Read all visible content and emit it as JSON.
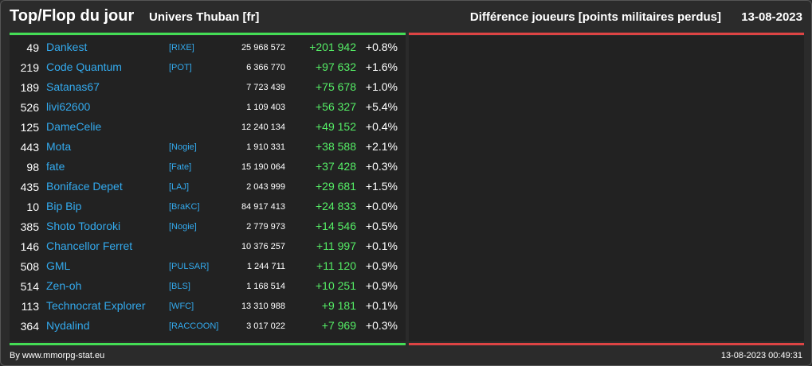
{
  "header": {
    "title": "Top/Flop du jour",
    "subtitle": "Univers Thuban [fr]",
    "metric": "Différence joueurs [points militaires perdus]",
    "date": "13-08-2023"
  },
  "colors": {
    "background": "#2b2b2b",
    "panel": "#222222",
    "top_line": "#44dd55",
    "flop_line": "#dd4444",
    "link": "#33aaee",
    "gain": "#55ee66"
  },
  "top": [
    {
      "rank": "49",
      "name": "Dankest",
      "alliance": "[RIXE]",
      "points": "25 968 572",
      "diff": "+201 942",
      "pct": "+0.8%"
    },
    {
      "rank": "219",
      "name": "Code Quantum",
      "alliance": "[POT]",
      "points": "6 366 770",
      "diff": "+97 632",
      "pct": "+1.6%"
    },
    {
      "rank": "189",
      "name": "Satanas67",
      "alliance": "",
      "points": "7 723 439",
      "diff": "+75 678",
      "pct": "+1.0%"
    },
    {
      "rank": "526",
      "name": "livi62600",
      "alliance": "",
      "points": "1 109 403",
      "diff": "+56 327",
      "pct": "+5.4%"
    },
    {
      "rank": "125",
      "name": "DameCelie",
      "alliance": "",
      "points": "12 240 134",
      "diff": "+49 152",
      "pct": "+0.4%"
    },
    {
      "rank": "443",
      "name": "Mota",
      "alliance": "[Nogie]",
      "points": "1 910 331",
      "diff": "+38 588",
      "pct": "+2.1%"
    },
    {
      "rank": "98",
      "name": "fate",
      "alliance": "[Fate]",
      "points": "15 190 064",
      "diff": "+37 428",
      "pct": "+0.3%"
    },
    {
      "rank": "435",
      "name": "Boniface Depet",
      "alliance": "[LAJ]",
      "points": "2 043 999",
      "diff": "+29 681",
      "pct": "+1.5%"
    },
    {
      "rank": "10",
      "name": "Bip Bip",
      "alliance": "[BraKC]",
      "points": "84 917 413",
      "diff": "+24 833",
      "pct": "+0.0%"
    },
    {
      "rank": "385",
      "name": "Shoto Todoroki",
      "alliance": "[Nogie]",
      "points": "2 779 973",
      "diff": "+14 546",
      "pct": "+0.5%"
    },
    {
      "rank": "146",
      "name": "Chancellor Ferret",
      "alliance": "",
      "points": "10 376 257",
      "diff": "+11 997",
      "pct": "+0.1%"
    },
    {
      "rank": "508",
      "name": "GML",
      "alliance": "[PULSAR]",
      "points": "1 244 711",
      "diff": "+11 120",
      "pct": "+0.9%"
    },
    {
      "rank": "514",
      "name": "Zen-oh",
      "alliance": "[BLS]",
      "points": "1 168 514",
      "diff": "+10 251",
      "pct": "+0.9%"
    },
    {
      "rank": "113",
      "name": "Technocrat Explorer",
      "alliance": "[WFC]",
      "points": "13 310 988",
      "diff": "+9 181",
      "pct": "+0.1%"
    },
    {
      "rank": "364",
      "name": "Nydalind",
      "alliance": "[RACCOON]",
      "points": "3 017 022",
      "diff": "+7 969",
      "pct": "+0.3%"
    }
  ],
  "footer": {
    "credit": "By www.mmorpg-stat.eu",
    "timestamp": "13-08-2023 00:49:31"
  }
}
